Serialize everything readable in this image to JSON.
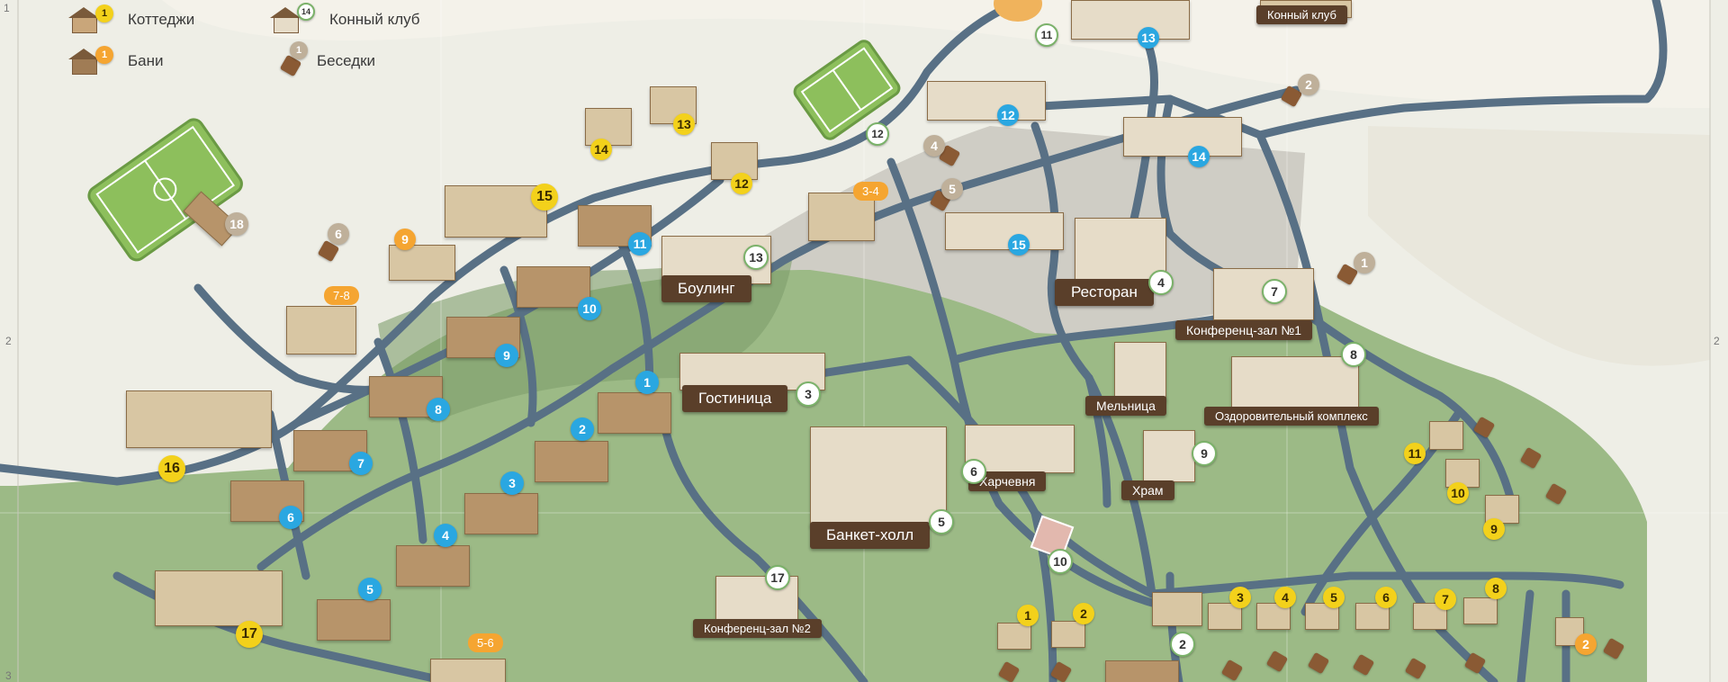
{
  "legend": {
    "cottages": "Коттеджи",
    "horse_club": "Конный клуб",
    "saunas": "Бани",
    "gazebos": "Беседки",
    "cottages_num": "1",
    "horse_club_num": "14",
    "saunas_num": "1",
    "gazebos_num": "1"
  },
  "venues": {
    "bowling": "Боулинг",
    "hotel": "Гостиница",
    "banquet": "Банкет-холл",
    "restaurant": "Ресторан",
    "conf1": "Конференц-зал №1",
    "conf2": "Конференц-зал №2",
    "mill": "Мельница",
    "wellness": "Оздоровительный комплекс",
    "tavern": "Харчевня",
    "temple": "Храм",
    "horse_club": "Конный клуб"
  },
  "venue_nums": {
    "bowling": "13",
    "hotel": "3",
    "banquet": "5",
    "restaurant": "4",
    "conf1": "7",
    "conf2": "17",
    "wellness": "8",
    "tavern": "6",
    "temple": "9",
    "n10": "10",
    "n11": "11",
    "n12": "12",
    "n2": "2"
  },
  "cottages_yellow": [
    "1",
    "2",
    "3",
    "4",
    "5",
    "6",
    "7",
    "8",
    "9",
    "10",
    "11",
    "12",
    "13",
    "14",
    "15",
    "16",
    "17"
  ],
  "cottages_blue": [
    "1",
    "2",
    "3",
    "4",
    "5",
    "6",
    "7",
    "8",
    "9",
    "10",
    "11",
    "12",
    "13",
    "14",
    "15"
  ],
  "saunas": [
    "9",
    "7-8",
    "3-4",
    "5-6",
    "2"
  ],
  "gazebos": [
    "18",
    "6",
    "4",
    "5",
    "1",
    "2"
  ],
  "edge_ticks": {
    "left_top": "1",
    "left_mid": "2",
    "left_bot": "3",
    "right_mid": "2"
  },
  "colors": {
    "path": "#587085",
    "meadow": "#9cba86",
    "sand": "#eeeee6",
    "brown": "#5a3f2a"
  }
}
